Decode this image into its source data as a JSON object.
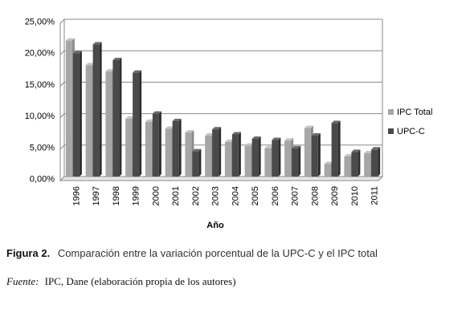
{
  "chart_data": {
    "type": "bar",
    "categories": [
      "1996",
      "1997",
      "1998",
      "1999",
      "2000",
      "2001",
      "2002",
      "2003",
      "2004",
      "2005",
      "2006",
      "2007",
      "2008",
      "2009",
      "2010",
      "2011"
    ],
    "series": [
      {
        "name": "IPC Total",
        "color": "#a6a6a6",
        "values": [
          21.6,
          17.7,
          16.7,
          9.2,
          8.7,
          7.6,
          7.0,
          6.5,
          5.5,
          4.9,
          4.5,
          5.7,
          7.7,
          2.0,
          3.2,
          3.7
        ]
      },
      {
        "name": "UPC-C",
        "color": "#4a4a4a",
        "values": [
          19.6,
          21.0,
          18.5,
          16.5,
          10.0,
          8.8,
          4.0,
          7.5,
          6.7,
          6.0,
          5.8,
          4.5,
          6.5,
          8.5,
          3.9,
          4.3
        ]
      }
    ],
    "xlabel": "Año",
    "ylabel": "",
    "ylim": [
      0,
      25
    ],
    "yticks": [
      "0,00%",
      "5,00%",
      "10,00%",
      "15,00%",
      "20,00%",
      "25,00%"
    ],
    "grid": true,
    "legend": "right"
  },
  "caption": {
    "label": "Figura 2.",
    "text": "Comparación entre la variación porcentual de la UPC-C y el IPC total"
  },
  "source": {
    "label": "Fuente:",
    "text": "IPC, Dane (elaboración propia de los autores)"
  }
}
